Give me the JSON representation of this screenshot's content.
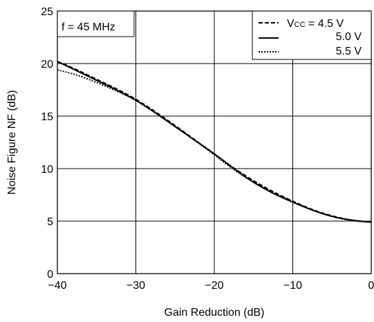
{
  "chart_data": {
    "type": "line",
    "xlabel": "Gain Reduction (dB)",
    "ylabel": "Noise Figure NF (dB)",
    "xlim": [
      -40,
      0
    ],
    "ylim": [
      0,
      25
    ],
    "x_ticks": [
      -40,
      -30,
      -20,
      -10,
      0
    ],
    "x_tick_labels": [
      "−40",
      "−30",
      "−20",
      "−10",
      "0"
    ],
    "y_ticks": [
      0,
      5,
      10,
      15,
      20,
      25
    ],
    "y_tick_labels": [
      "0",
      "5",
      "10",
      "15",
      "20",
      "25"
    ],
    "grid": true,
    "annotation": "f = 45 MHz",
    "legend_position": "top-right",
    "legend_vcc_prefix": "V",
    "legend_vcc_sub": "CC",
    "series": [
      {
        "name": "Vcc = 4.5 V",
        "legend_value": " = 4.5 V",
        "style": "dashed",
        "x": [
          -40,
          -37.5,
          -35,
          -32.5,
          -30,
          -27.5,
          -25,
          -22.5,
          -20,
          -17.5,
          -15,
          -12.5,
          -10,
          -7.5,
          -5,
          -2.5,
          0
        ],
        "y": [
          20.2,
          19.4,
          18.5,
          17.6,
          16.6,
          15.4,
          14.1,
          12.75,
          11.4,
          10.05,
          8.85,
          7.8,
          6.9,
          6.1,
          5.5,
          5.1,
          4.9
        ]
      },
      {
        "name": "5.0 V",
        "legend_value": "5.0 V",
        "style": "solid",
        "x": [
          -40,
          -37.5,
          -35,
          -32.5,
          -30,
          -27.5,
          -25,
          -22.5,
          -20,
          -17.5,
          -15,
          -12.5,
          -10,
          -7.5,
          -5,
          -2.5,
          0
        ],
        "y": [
          20.2,
          19.3,
          18.4,
          17.5,
          16.5,
          15.3,
          14.0,
          12.7,
          11.4,
          10.0,
          8.7,
          7.65,
          6.8,
          6.05,
          5.45,
          5.1,
          4.9
        ]
      },
      {
        "name": "5.5 V",
        "legend_value": "5.5 V",
        "style": "dotted",
        "x": [
          -40,
          -37.5,
          -35,
          -32.5,
          -30,
          -27.5,
          -25,
          -22.5,
          -20,
          -17.5,
          -15,
          -12.5,
          -10,
          -7.5,
          -5,
          -2.5,
          0
        ],
        "y": [
          19.4,
          18.9,
          18.2,
          17.4,
          16.5,
          15.3,
          14.0,
          12.7,
          11.3,
          9.9,
          8.7,
          7.7,
          6.85,
          6.05,
          5.45,
          5.05,
          4.9
        ]
      }
    ]
  }
}
